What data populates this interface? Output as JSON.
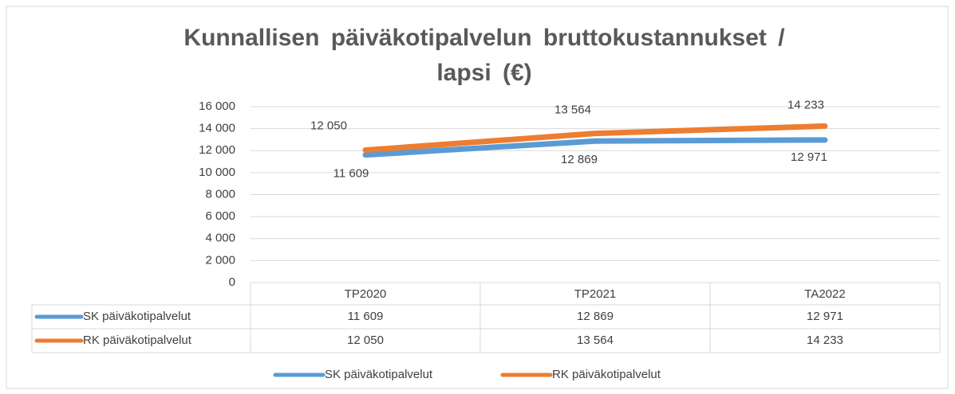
{
  "chart_data": {
    "type": "line",
    "title": "Kunnallisen päiväkotipalvelun bruttokustannukset / lapsi (€)",
    "categories": [
      "TP2020",
      "TP2021",
      "TA2022"
    ],
    "series": [
      {
        "name": "SK päiväkotipalvelut",
        "color": "#5b9bd5",
        "values": [
          11609,
          12869,
          12971
        ],
        "value_labels": [
          "11 609",
          "12 869",
          "12 971"
        ]
      },
      {
        "name": "RK päiväkotipalvelut",
        "color": "#ed7d31",
        "values": [
          12050,
          13564,
          14233
        ],
        "value_labels": [
          "12 050",
          "13 564",
          "14 233"
        ]
      }
    ],
    "ylim": [
      0,
      16000
    ],
    "yticks": [
      0,
      {
        "value": 2000,
        "label": "2 000"
      },
      {
        "value": 4000,
        "label": "4 000"
      },
      {
        "value": 6000,
        "label": "6 000"
      },
      {
        "value": 8000,
        "label": "8 000"
      },
      {
        "value": 10000,
        "label": "10 000"
      },
      {
        "value": 12000,
        "label": "12 000"
      },
      {
        "value": 14000,
        "label": "14 000"
      },
      {
        "value": 16000,
        "label": "16 000"
      }
    ],
    "grid": true,
    "legend": "bottom"
  }
}
